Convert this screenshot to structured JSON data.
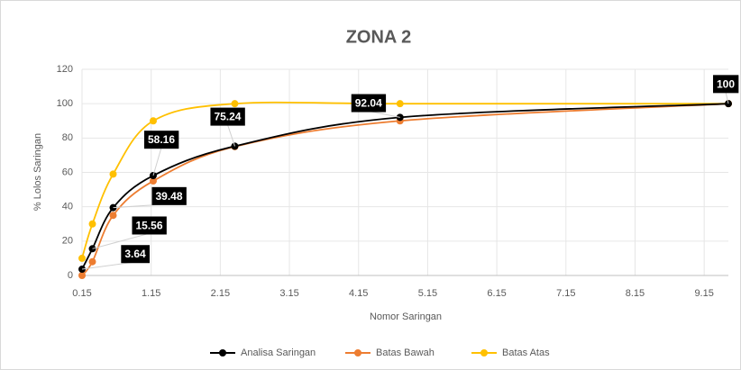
{
  "chart_data": {
    "type": "line",
    "title": "ZONA 2",
    "x_label": "Nomor Saringan",
    "y_label": "% Lolos Saringan",
    "x": [
      0.15,
      0.3,
      0.6,
      1.18,
      2.36,
      4.75,
      9.5
    ],
    "series": [
      {
        "name": "Analisa Saringan",
        "color": "#000000",
        "values": [
          3.64,
          15.56,
          39.48,
          58.16,
          75.24,
          92.04,
          100
        ],
        "data_labels": true
      },
      {
        "name": "Batas Bawah",
        "color": "#ED7D31",
        "values": [
          0,
          8,
          35,
          55,
          75,
          90,
          100
        ]
      },
      {
        "name": "Batas Atas",
        "color": "#FFC000",
        "values": [
          10,
          30,
          59,
          90,
          100,
          100,
          100
        ]
      }
    ],
    "xlim": [
      0.15,
      9.5
    ],
    "xticks": [
      0.15,
      1.15,
      2.15,
      3.15,
      4.15,
      5.15,
      6.15,
      7.15,
      8.15,
      9.15
    ],
    "ylim": [
      0,
      120
    ],
    "yticks": [
      0,
      20,
      40,
      60,
      80,
      100,
      120
    ],
    "grid": true,
    "smooth": true,
    "legend": "bottom"
  }
}
